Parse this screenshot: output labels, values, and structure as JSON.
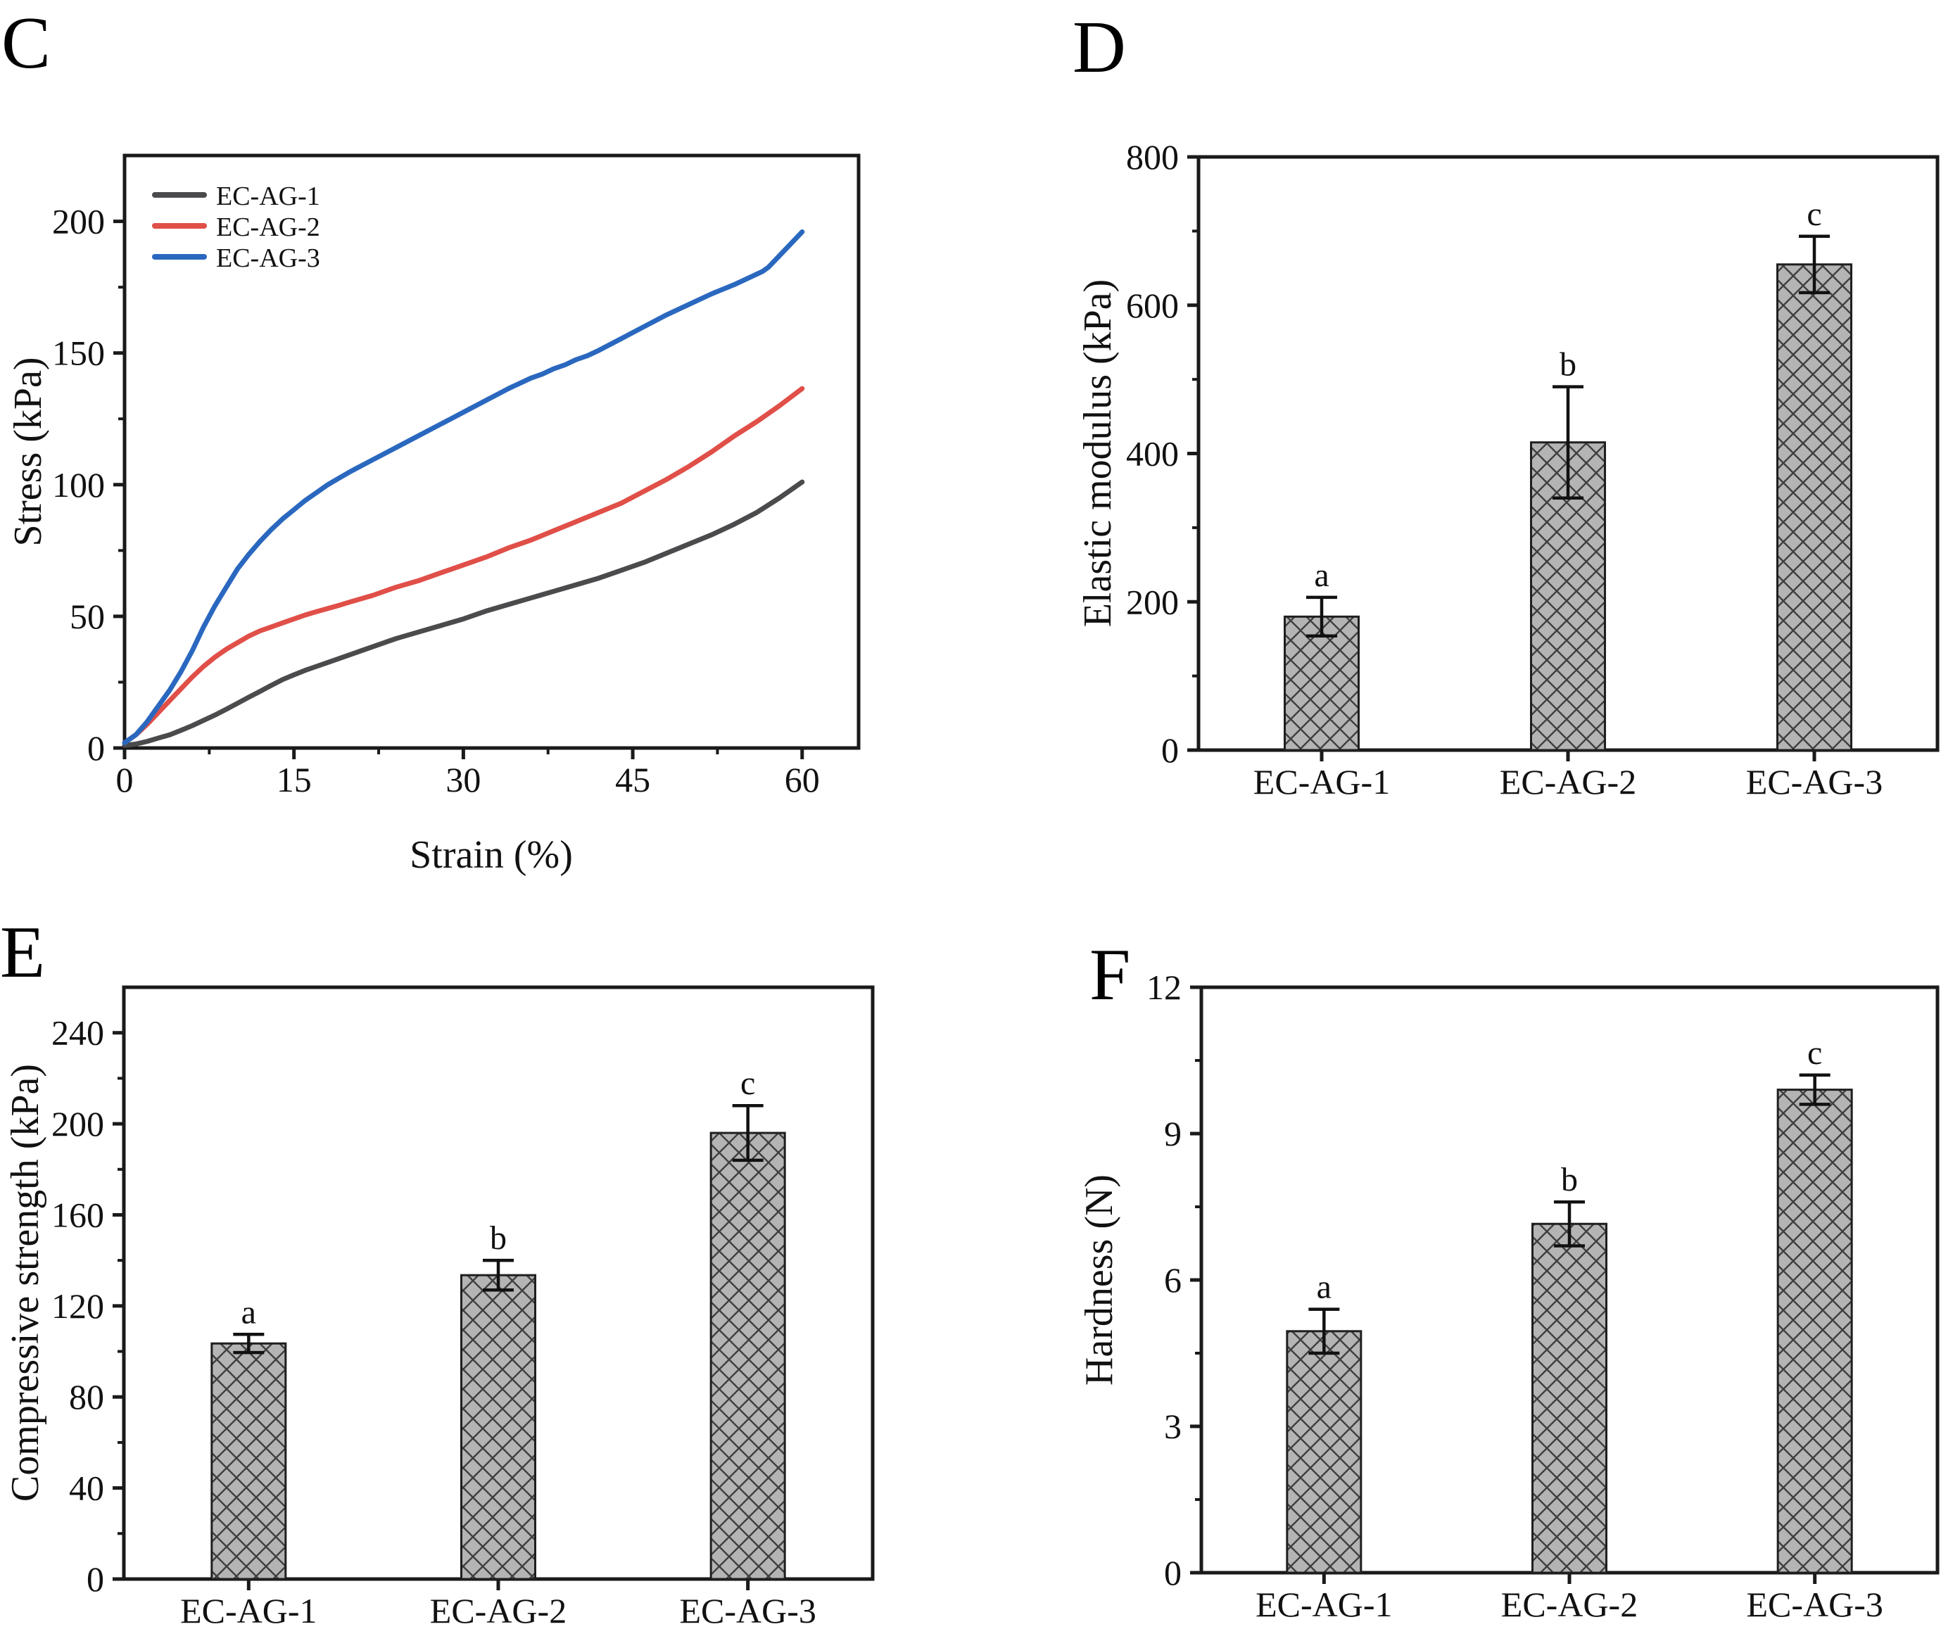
{
  "figure": {
    "background": "#ffffff",
    "panel_letters": {
      "C": "C",
      "D": "D",
      "E": "E",
      "F": "F"
    }
  },
  "colors": {
    "axis": "#1a1a1a",
    "bar_fill": "#b4b4b4",
    "hatch_line": "#3f3f3f",
    "bar_edge": "#1f1f1f",
    "error_bar": "#111111",
    "series_gray": "#4b4b4d",
    "series_red": "#e04f48",
    "series_blue": "#2a68bf"
  },
  "chart_data": [
    {
      "panel": "C",
      "type": "line",
      "xlabel": "Strain (%)",
      "ylabel": "Stress (kPa)",
      "xlim": [
        0,
        65
      ],
      "ylim": [
        0,
        225
      ],
      "xticks": [
        0,
        15,
        30,
        45,
        60
      ],
      "xminorticks": [
        7.5,
        22.5,
        37.5,
        52.5
      ],
      "yticks": [
        0,
        50,
        100,
        150,
        200
      ],
      "yminorticks": [
        25,
        75,
        125,
        175
      ],
      "grid": false,
      "legend_position": "upper-left",
      "legend": [
        "EC-AG-1",
        "EC-AG-2",
        "EC-AG-3"
      ],
      "series": [
        {
          "name": "EC-AG-1",
          "color": "#4b4b4d",
          "x": [
            0,
            1,
            2,
            3,
            4,
            5,
            6,
            7,
            8,
            9,
            10,
            11,
            12,
            13,
            14,
            15,
            16,
            17,
            18,
            19,
            20,
            22,
            24,
            26,
            28,
            30,
            32,
            34,
            36,
            38,
            40,
            42,
            44,
            46,
            48,
            50,
            52,
            54,
            56,
            58,
            60
          ],
          "y": [
            1,
            1.5,
            2.5,
            3.8,
            5,
            6.7,
            8.5,
            10.5,
            12.5,
            14.7,
            17,
            19.3,
            21.5,
            23.8,
            26,
            27.8,
            29.5,
            31,
            32.5,
            34,
            35.5,
            38.5,
            41.5,
            44,
            46.5,
            49,
            52,
            54.5,
            57,
            59.5,
            62,
            64.5,
            67.5,
            70.5,
            74,
            77.5,
            81,
            85,
            89.5,
            95,
            101
          ]
        },
        {
          "name": "EC-AG-2",
          "color": "#e04f48",
          "x": [
            0,
            1,
            2,
            3,
            4,
            5,
            6,
            7,
            8,
            9,
            10,
            11,
            12,
            13,
            14,
            15,
            16,
            17,
            18,
            19,
            20,
            22,
            24,
            26,
            28,
            30,
            32,
            34,
            36,
            38,
            40,
            42,
            44,
            46,
            48,
            50,
            52,
            54,
            56,
            58,
            60
          ],
          "y": [
            2,
            5,
            9,
            13.5,
            18,
            22.5,
            27,
            31,
            34.5,
            37.5,
            40,
            42.5,
            44.5,
            46,
            47.5,
            49,
            50.5,
            51.8,
            53,
            54.2,
            55.5,
            58,
            61,
            63.5,
            66.5,
            69.5,
            72.5,
            76,
            79,
            82.5,
            86,
            89.5,
            93,
            97.5,
            102,
            107,
            112.5,
            118.5,
            124,
            130,
            136.5
          ]
        },
        {
          "name": "EC-AG-3",
          "color": "#2a68bf",
          "x": [
            0,
            1,
            2,
            3,
            4,
            5,
            6,
            7,
            8,
            9,
            10,
            11,
            12,
            13,
            14,
            15,
            16,
            17,
            18,
            19,
            20,
            22,
            24,
            26,
            28,
            30,
            32,
            34,
            36,
            37,
            38,
            39,
            40,
            41,
            42,
            44,
            46,
            48,
            50,
            52,
            54,
            55,
            56,
            56.5,
            57,
            58,
            59,
            60
          ],
          "y": [
            2,
            5,
            10,
            16,
            22,
            29,
            37,
            46,
            54,
            61,
            68,
            73.5,
            78.5,
            83,
            87,
            90.5,
            94,
            97,
            100,
            102.5,
            105,
            109.5,
            114,
            118.5,
            123,
            127.5,
            132,
            136.5,
            140.5,
            142,
            144,
            145.5,
            147.5,
            149,
            151,
            155.5,
            160,
            164.5,
            168.5,
            172.5,
            176,
            178,
            180,
            181,
            182.5,
            187,
            191.5,
            196
          ]
        }
      ]
    },
    {
      "panel": "D",
      "type": "bar",
      "ylabel": "Elastic modulus (kPa)",
      "ylim": [
        0,
        800
      ],
      "yticks": [
        0,
        200,
        400,
        600,
        800
      ],
      "yminorticks": [
        100,
        300,
        500,
        700
      ],
      "categories": [
        "EC-AG-1",
        "EC-AG-2",
        "EC-AG-3"
      ],
      "values": [
        180,
        415,
        655
      ],
      "errors": [
        26,
        75,
        38
      ],
      "sig_letters": [
        "a",
        "b",
        "c"
      ],
      "hatch": "cross-diagonal"
    },
    {
      "panel": "E",
      "type": "bar",
      "ylabel": "Compressive strength (kPa)",
      "ylim": [
        0,
        260
      ],
      "yticks": [
        0,
        40,
        80,
        120,
        160,
        200,
        240
      ],
      "yminorticks": [
        20,
        60,
        100,
        140,
        180,
        220
      ],
      "categories": [
        "EC-AG-1",
        "EC-AG-2",
        "EC-AG-3"
      ],
      "values": [
        103.5,
        133.5,
        196
      ],
      "errors": [
        4,
        6.5,
        12
      ],
      "sig_letters": [
        "a",
        "b",
        "c"
      ],
      "hatch": "cross-diagonal"
    },
    {
      "panel": "F",
      "type": "bar",
      "ylabel": "Hardness (N)",
      "ylim": [
        0,
        12
      ],
      "yticks": [
        0,
        3,
        6,
        9,
        12
      ],
      "yminorticks": [
        1.5,
        4.5,
        7.5,
        10.5
      ],
      "categories": [
        "EC-AG-1",
        "EC-AG-2",
        "EC-AG-3"
      ],
      "values": [
        4.95,
        7.15,
        9.9
      ],
      "errors": [
        0.45,
        0.45,
        0.3
      ],
      "sig_letters": [
        "a",
        "b",
        "c"
      ],
      "hatch": "cross-diagonal"
    }
  ]
}
